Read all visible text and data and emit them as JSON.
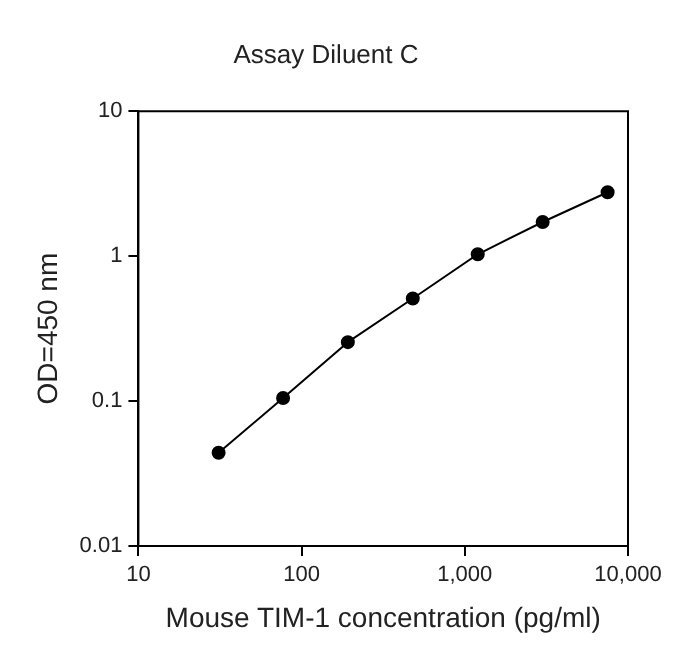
{
  "chart_data": {
    "type": "line",
    "title": "Assay Diluent C",
    "xlabel": "Mouse TIM-1 concentration (pg/ml)",
    "ylabel": "OD=450 nm",
    "x": [
      31,
      77,
      192,
      480,
      1200,
      3000,
      7500
    ],
    "series": [
      {
        "color": "#000000",
        "values": [
          0.044,
          0.105,
          0.255,
          0.51,
          1.03,
          1.72,
          2.76
        ]
      }
    ],
    "log": "xy",
    "marker": "circle",
    "line_style": "solid",
    "grid": false,
    "legend": false,
    "xlim": [
      10,
      10000
    ],
    "xticks": [
      10,
      100,
      {
        "value": 1000,
        "label": "1,000"
      },
      {
        "value": 10000,
        "label": "10,000"
      }
    ],
    "ylim": [
      0.01,
      10
    ],
    "yticks": [
      0.01,
      0.1,
      1,
      10
    ]
  }
}
